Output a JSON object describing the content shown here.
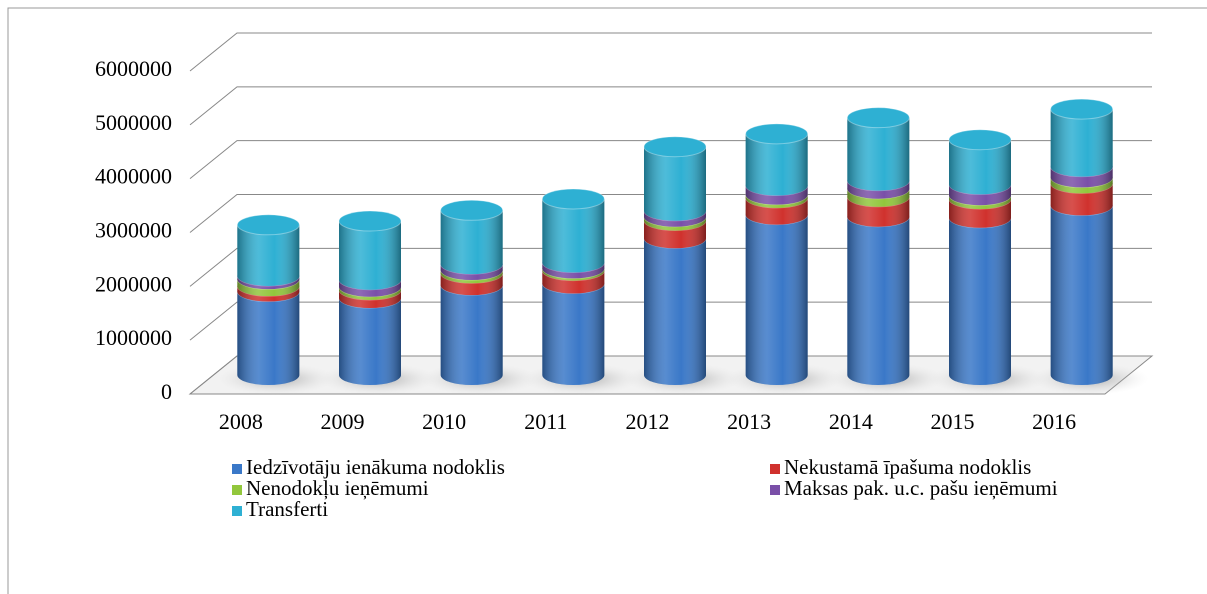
{
  "chart_data": {
    "type": "bar",
    "stacked": true,
    "three_d": true,
    "categories": [
      "2008",
      "2009",
      "2010",
      "2011",
      "2012",
      "2013",
      "2014",
      "2015",
      "2016"
    ],
    "series": [
      {
        "name": "Iedzīvotāju ienākuma nodoklis",
        "color": "#3a78c8",
        "values": [
          1550000,
          1430000,
          1670000,
          1700000,
          2540000,
          2980000,
          2940000,
          2920000,
          3150000
        ]
      },
      {
        "name": "Nekustamā īpašuma nodoklis",
        "color": "#d0312d",
        "values": [
          100000,
          150000,
          220000,
          240000,
          330000,
          310000,
          370000,
          350000,
          410000
        ]
      },
      {
        "name": "Nenodokļu ieņēmumi",
        "color": "#92c73c",
        "values": [
          130000,
          60000,
          60000,
          40000,
          70000,
          60000,
          150000,
          70000,
          110000
        ]
      },
      {
        "name": "Maksas pak. u.c. pašu ieņēmumi",
        "color": "#7a4fa8",
        "values": [
          60000,
          130000,
          110000,
          110000,
          110000,
          170000,
          150000,
          200000,
          200000
        ]
      },
      {
        "name": "Transferti",
        "color": "#2eb0d3",
        "values": [
          950000,
          1090000,
          1000000,
          1180000,
          1190000,
          960000,
          1170000,
          830000,
          1070000
        ]
      }
    ],
    "ylim": [
      0,
      6000000
    ],
    "yticks": [
      0,
      1000000,
      2000000,
      3000000,
      4000000,
      5000000,
      6000000
    ],
    "grid": true,
    "legend": "bottom"
  }
}
